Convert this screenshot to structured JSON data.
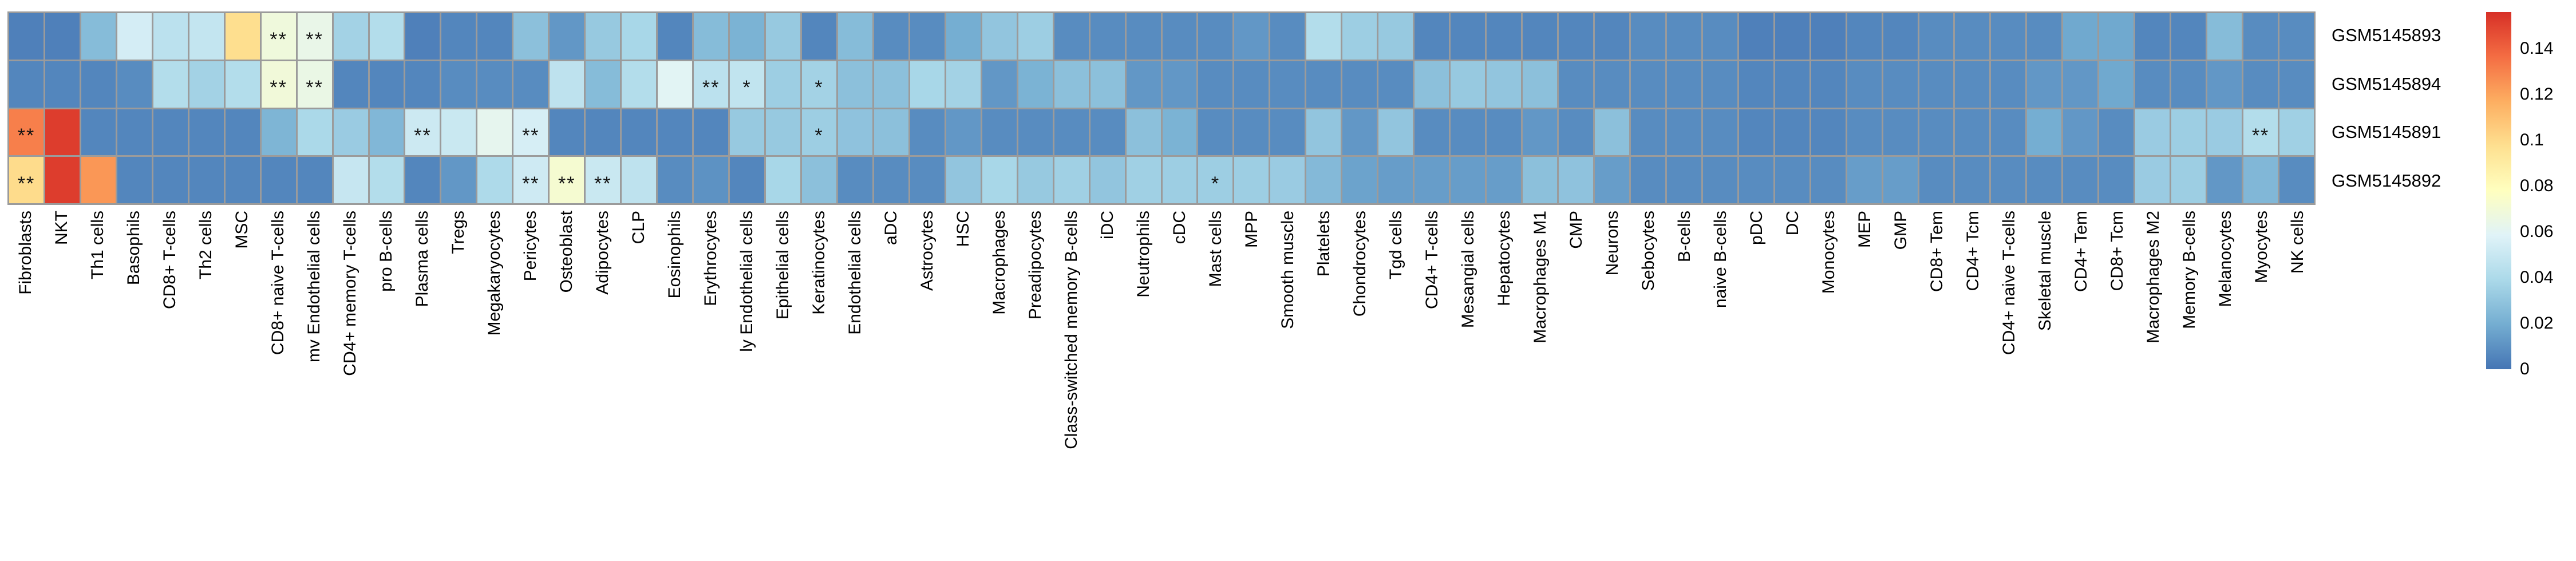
{
  "figure": {
    "background": "#ffffff",
    "grid_color": "#9b9b9b"
  },
  "chart_data": {
    "type": "heatmap",
    "title": "",
    "xlabel": "",
    "ylabel": "",
    "legend_position": "right-colorbar",
    "rows": [
      "GSM5145893",
      "GSM5145894",
      "GSM5145891",
      "GSM5145892"
    ],
    "columns": [
      "Fibroblasts",
      "NKT",
      "Th1 cells",
      "Basophils",
      "CD8+ T-cells",
      "Th2 cells",
      "MSC",
      "CD8+ naive T-cells",
      "mv Endothelial cells",
      "CD4+ memory T-cells",
      "pro B-cells",
      "Plasma cells",
      "Tregs",
      "Megakaryocytes",
      "Pericytes",
      "Osteoblast",
      "Adipocytes",
      "CLP",
      "Eosinophils",
      "Erythrocytes",
      "ly Endothelial cells",
      "Epithelial cells",
      "Keratinocytes",
      "Endothelial cells",
      "aDC",
      "Astrocytes",
      "HSC",
      "Macrophages",
      "Preadipocytes",
      "Class-switched memory B-cells",
      "iDC",
      "Neutrophils",
      "cDC",
      "Mast cells",
      "MPP",
      "Smooth muscle",
      "Platelets",
      "Chondrocytes",
      "Tgd cells",
      "CD4+ T-cells",
      "Mesangial cells",
      "Hepatocytes",
      "Macrophages M1",
      "CMP",
      "Neurons",
      "Sebocytes",
      "B-cells",
      "naive B-cells",
      "pDC",
      "DC",
      "Monocytes",
      "MEP",
      "GMP",
      "CD8+ Tem",
      "CD4+ Tcm",
      "CD4+ naive T-cells",
      "Skeletal muscle",
      "CD4+ Tem",
      "CD8+ Tcm",
      "Macrophages M2",
      "Memory B-cells",
      "Melanocytes",
      "Myocytes",
      "NK cells"
    ],
    "values": [
      [
        0.004,
        0.004,
        0.026,
        0.054,
        0.045,
        0.048,
        0.098,
        0.068,
        0.064,
        0.036,
        0.042,
        0.004,
        0.006,
        0.006,
        0.028,
        0.012,
        0.032,
        0.038,
        0.006,
        0.026,
        0.022,
        0.032,
        0.006,
        0.026,
        0.008,
        0.008,
        0.02,
        0.03,
        0.034,
        0.008,
        0.008,
        0.008,
        0.008,
        0.008,
        0.012,
        0.008,
        0.042,
        0.034,
        0.032,
        0.006,
        0.006,
        0.006,
        0.006,
        0.006,
        0.006,
        0.008,
        0.008,
        0.008,
        0.004,
        0.004,
        0.004,
        0.006,
        0.006,
        0.008,
        0.008,
        0.008,
        0.008,
        0.018,
        0.018,
        0.006,
        0.006,
        0.026,
        0.008,
        0.008
      ],
      [
        0.006,
        0.006,
        0.006,
        0.008,
        0.042,
        0.036,
        0.042,
        0.069,
        0.065,
        0.006,
        0.006,
        0.006,
        0.008,
        0.008,
        0.008,
        0.046,
        0.026,
        0.042,
        0.06,
        0.045,
        0.047,
        0.034,
        0.036,
        0.028,
        0.028,
        0.038,
        0.036,
        0.012,
        0.022,
        0.028,
        0.028,
        0.012,
        0.012,
        0.008,
        0.008,
        0.008,
        0.008,
        0.008,
        0.008,
        0.028,
        0.032,
        0.03,
        0.028,
        0.008,
        0.008,
        0.008,
        0.008,
        0.008,
        0.006,
        0.006,
        0.006,
        0.008,
        0.008,
        0.008,
        0.008,
        0.008,
        0.012,
        0.012,
        0.018,
        0.008,
        0.008,
        0.012,
        0.008,
        0.008
      ],
      [
        0.131,
        0.152,
        0.006,
        0.006,
        0.006,
        0.006,
        0.006,
        0.023,
        0.039,
        0.033,
        0.024,
        0.051,
        0.05,
        0.062,
        0.055,
        0.006,
        0.006,
        0.006,
        0.006,
        0.006,
        0.032,
        0.032,
        0.034,
        0.029,
        0.028,
        0.008,
        0.012,
        0.008,
        0.008,
        0.008,
        0.008,
        0.028,
        0.022,
        0.008,
        0.008,
        0.008,
        0.03,
        0.012,
        0.03,
        0.008,
        0.008,
        0.008,
        0.012,
        0.008,
        0.028,
        0.008,
        0.008,
        0.008,
        0.006,
        0.006,
        0.006,
        0.008,
        0.008,
        0.008,
        0.008,
        0.008,
        0.02,
        0.012,
        0.008,
        0.033,
        0.034,
        0.033,
        0.042,
        0.035
      ],
      [
        0.099,
        0.152,
        0.124,
        0.006,
        0.006,
        0.006,
        0.006,
        0.006,
        0.006,
        0.049,
        0.042,
        0.006,
        0.012,
        0.04,
        0.052,
        0.072,
        0.05,
        0.046,
        0.008,
        0.01,
        0.006,
        0.038,
        0.028,
        0.008,
        0.008,
        0.008,
        0.03,
        0.038,
        0.032,
        0.035,
        0.03,
        0.035,
        0.034,
        0.034,
        0.034,
        0.033,
        0.025,
        0.016,
        0.014,
        0.014,
        0.014,
        0.014,
        0.028,
        0.029,
        0.014,
        0.008,
        0.008,
        0.008,
        0.008,
        0.008,
        0.008,
        0.014,
        0.014,
        0.008,
        0.008,
        0.008,
        0.008,
        0.008,
        0.008,
        0.033,
        0.034,
        0.012,
        0.024,
        0.008
      ]
    ],
    "significance": [
      [
        "",
        "",
        "",
        "",
        "",
        "",
        "",
        "**",
        "**",
        "",
        "",
        "",
        "",
        "",
        "",
        "",
        "",
        "",
        "",
        "",
        "",
        "",
        "",
        "",
        "",
        "",
        "",
        "",
        "",
        "",
        "",
        "",
        "",
        "",
        "",
        "",
        "",
        "",
        "",
        "",
        "",
        "",
        "",
        "",
        "",
        "",
        "",
        "",
        "",
        "",
        "",
        "",
        "",
        "",
        "",
        "",
        "",
        "",
        "",
        "",
        "",
        "",
        "",
        ""
      ],
      [
        "",
        "",
        "",
        "",
        "",
        "",
        "",
        "**",
        "**",
        "",
        "",
        "",
        "",
        "",
        "",
        "",
        "",
        "",
        "",
        "**",
        "*",
        "",
        "*",
        "",
        "",
        "",
        "",
        "",
        "",
        "",
        "",
        "",
        "",
        "",
        "",
        "",
        "",
        "",
        "",
        "",
        "",
        "",
        "",
        "",
        "",
        "",
        "",
        "",
        "",
        "",
        "",
        "",
        "",
        "",
        "",
        "",
        "",
        "",
        "",
        "",
        "",
        "",
        "",
        ""
      ],
      [
        "**",
        "",
        "",
        "",
        "",
        "",
        "",
        "",
        "",
        "",
        "",
        "**",
        "",
        "",
        "**",
        "",
        "",
        "",
        "",
        "",
        "",
        "",
        "*",
        "",
        "",
        "",
        "",
        "",
        "",
        "",
        "",
        "",
        "",
        "",
        "",
        "",
        "",
        "",
        "",
        "",
        "",
        "",
        "",
        "",
        "",
        "",
        "",
        "",
        "",
        "",
        "",
        "",
        "",
        "",
        "",
        "",
        "",
        "",
        "",
        "",
        "",
        "",
        "**",
        ""
      ],
      [
        "**",
        "",
        "",
        "",
        "",
        "",
        "",
        "",
        "",
        "",
        "",
        "",
        "",
        "",
        "**",
        "**",
        "**",
        "",
        "",
        "",
        "",
        "",
        "",
        "",
        "",
        "",
        "",
        "",
        "",
        "",
        "",
        "",
        "",
        "*",
        "",
        "",
        "",
        "",
        "",
        "",
        "",
        "",
        "",
        "",
        "",
        "",
        "",
        "",
        "",
        "",
        "",
        "",
        "",
        "",
        "",
        "",
        "",
        "",
        "",
        "",
        "",
        "",
        "",
        ""
      ]
    ],
    "colorbar": {
      "min": 0,
      "max": 0.156,
      "tick_labels": [
        "0.14",
        "0.12",
        "0.1",
        "0.08",
        "0.06",
        "0.04",
        "0.02",
        "0"
      ],
      "tick_values": [
        0.14,
        0.12,
        0.1,
        0.08,
        0.06,
        0.04,
        0.02,
        0
      ],
      "gradient_stops": [
        {
          "pos": 0.0,
          "color": "#4575b4"
        },
        {
          "pos": 0.125,
          "color": "#74add1"
        },
        {
          "pos": 0.25,
          "color": "#abd9e9"
        },
        {
          "pos": 0.375,
          "color": "#e0f3f8"
        },
        {
          "pos": 0.5,
          "color": "#ffffbf"
        },
        {
          "pos": 0.625,
          "color": "#fee090"
        },
        {
          "pos": 0.75,
          "color": "#fdae61"
        },
        {
          "pos": 0.875,
          "color": "#f46d43"
        },
        {
          "pos": 1.0,
          "color": "#d73027"
        }
      ]
    }
  }
}
